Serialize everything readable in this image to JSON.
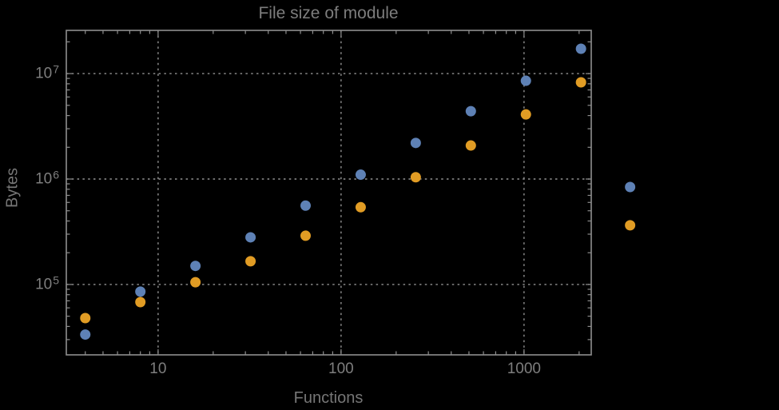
{
  "chart": {
    "title": "File size of module",
    "xlabel": "Functions",
    "ylabel": "Bytes"
  },
  "chart_data": {
    "type": "scatter",
    "title": "File size of module",
    "xlabel": "Functions",
    "ylabel": "Bytes",
    "xscale": "log",
    "yscale": "log",
    "grid": true,
    "legend": false,
    "xlim": [
      3.15,
      2330
    ],
    "ylim": [
      21500,
      25700000
    ],
    "x": [
      4,
      8,
      16,
      32,
      64,
      128,
      256,
      512,
      1024,
      2048,
      3800
    ],
    "series": [
      {
        "name": "series_blue",
        "color": "#5E81B5",
        "values": [
          33500,
          85500,
          150000,
          280000,
          560000,
          1100000,
          2200000,
          4400000,
          8550000,
          17200000,
          840000
        ]
      },
      {
        "name": "series_orange",
        "color": "#E19C24",
        "values": [
          48000,
          68000,
          105000,
          166000,
          290000,
          540000,
          1040000,
          2080000,
          4100000,
          8260000,
          364000
        ]
      }
    ],
    "x_ticks": [
      {
        "value": 10,
        "label": "10"
      },
      {
        "value": 100,
        "label": "100"
      },
      {
        "value": 1000,
        "label": "1000"
      }
    ],
    "y_ticks": [
      {
        "value": 100000,
        "base": "10",
        "exp": "5"
      },
      {
        "value": 1000000,
        "base": "10",
        "exp": "6"
      },
      {
        "value": 10000000,
        "base": "10",
        "exp": "7"
      }
    ],
    "colors": {
      "background": "#000000",
      "frame": "#8e8e8e",
      "grid": "#939393",
      "tick_text": "#7e7e7e",
      "label_text": "#767676",
      "title_text": "#7d7d7d"
    }
  }
}
